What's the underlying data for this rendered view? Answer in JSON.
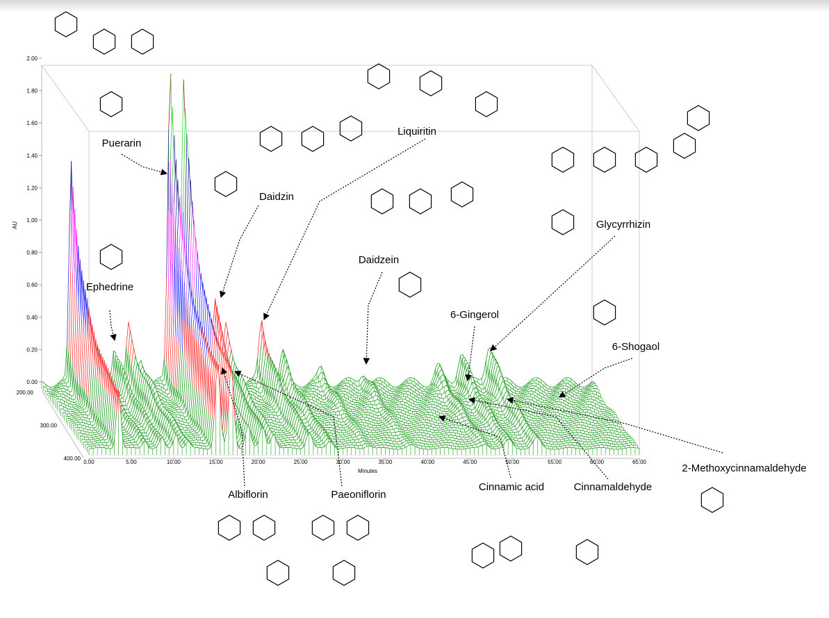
{
  "chart_data": {
    "type": "3d-surface",
    "xlabel": "Minutes",
    "ylabel": "AU",
    "zlabel": "",
    "xlim": [
      0,
      65
    ],
    "ylim": [
      0,
      2
    ],
    "zlim": [
      200,
      400
    ],
    "x_ticks": [
      "0.00",
      "5.00",
      "10.00",
      "15.00",
      "20.00",
      "25.00",
      "30.00",
      "35.00",
      "40.00",
      "45.00",
      "50.00",
      "55.00",
      "60.00",
      "65.00"
    ],
    "y_ticks": [
      "0.00",
      "0.20",
      "0.40",
      "0.60",
      "0.80",
      "1.00",
      "1.20",
      "1.40",
      "1.60",
      "1.80",
      "2.00"
    ],
    "z_ticks": [
      "200.00",
      "300.00",
      "400.00"
    ],
    "peaks": [
      {
        "time": 3.5,
        "au": 1.35
      },
      {
        "time": 6.6,
        "au": 0.2
      },
      {
        "time": 8.6,
        "au": 0.24
      },
      {
        "time": 10.3,
        "au": 0.35
      },
      {
        "time": 11.7,
        "au": 0.16
      },
      {
        "time": 15.2,
        "au": 1.95
      },
      {
        "time": 16.8,
        "au": 1.9
      },
      {
        "time": 18.8,
        "au": 0.55
      },
      {
        "time": 20.5,
        "au": 0.52
      },
      {
        "time": 21.8,
        "au": 0.35
      },
      {
        "time": 26.0,
        "au": 0.38
      },
      {
        "time": 28.5,
        "au": 0.18
      },
      {
        "time": 33.0,
        "au": 0.08
      },
      {
        "time": 38.0,
        "au": 0.07
      },
      {
        "time": 46.8,
        "au": 0.1
      },
      {
        "time": 49.6,
        "au": 0.2
      },
      {
        "time": 52.9,
        "au": 0.25
      }
    ],
    "color_bands": [
      {
        "max": 0.25,
        "color": "#1a9a1a"
      },
      {
        "max": 0.55,
        "color": "#ff3030"
      },
      {
        "max": 0.8,
        "color": "#3030ff"
      },
      {
        "max": 1.1,
        "color": "#ff30ff"
      },
      {
        "max": 1.4,
        "color": "#202090"
      },
      {
        "max": 1.65,
        "color": "#30e030"
      },
      {
        "max": 1.9,
        "color": "#902020"
      },
      {
        "max": 2.1,
        "color": "#30e0ff"
      }
    ],
    "annotations": [
      "Puerarin",
      "Ephedrine",
      "Daidzin",
      "Liquiritin",
      "Daidzein",
      "6-Gingerol",
      "Glycyrrhizin",
      "6-Shogaol",
      "Albiflorin",
      "Paeoniflorin",
      "Cinnamic acid",
      "Cinnamaldehyde",
      "2-Methoxycinnamaldehyde"
    ]
  }
}
